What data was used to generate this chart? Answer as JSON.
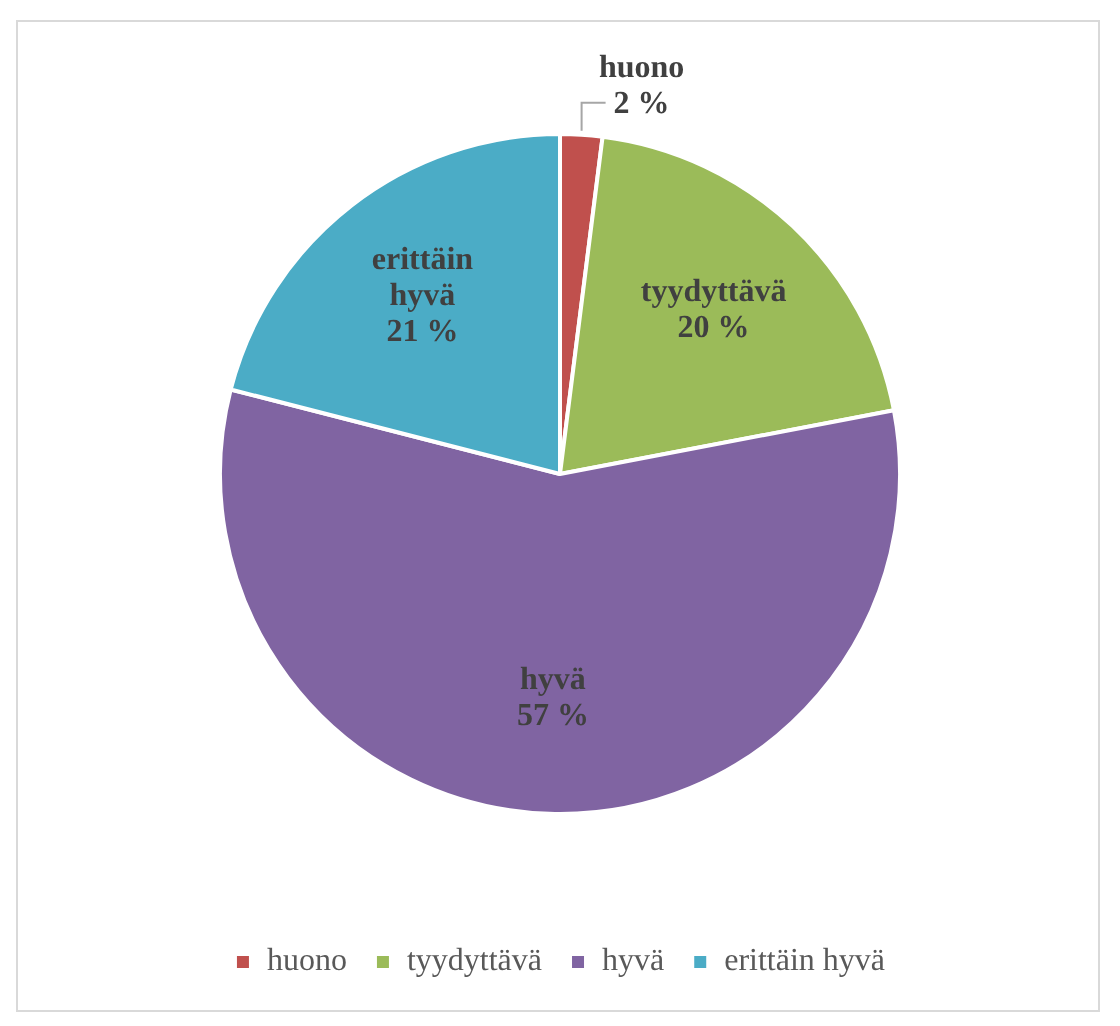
{
  "chart_data": {
    "type": "pie",
    "categories": [
      "huono",
      "tyydyttävä",
      "hyvä",
      "erittäin hyvä"
    ],
    "values": [
      2,
      20,
      57,
      21
    ],
    "value_labels": [
      "2 %",
      "20 %",
      "57 %",
      "21 %"
    ],
    "colors": [
      "#c0504d",
      "#9bbb59",
      "#8064a2",
      "#4bacc6"
    ],
    "legend": "bottom"
  }
}
